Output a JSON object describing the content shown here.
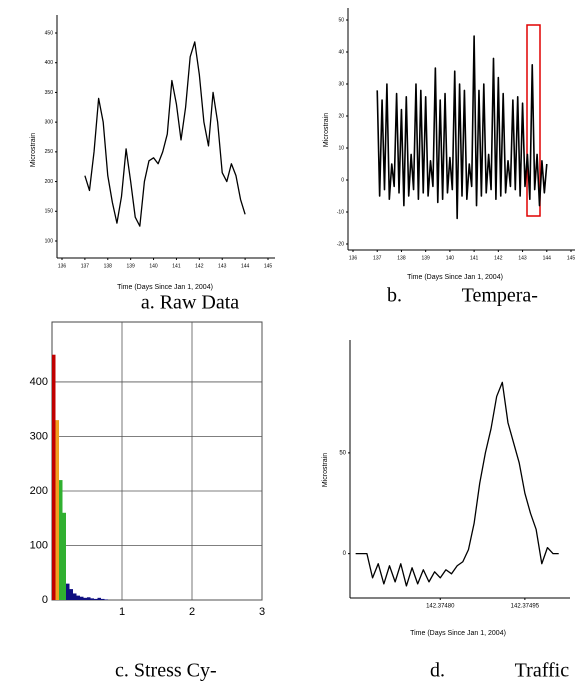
{
  "chart_data": [
    {
      "type": "line",
      "caption": "a. Raw Data",
      "x_label": "Time (Days Since Jan 1, 2004)",
      "y_label": "Microstrain",
      "color": "#000000",
      "grid": false,
      "x": [
        137.0,
        137.2,
        137.4,
        137.6,
        137.8,
        138.0,
        138.2,
        138.4,
        138.6,
        138.8,
        139.0,
        139.2,
        139.4,
        139.6,
        139.8,
        140.0,
        140.2,
        140.4,
        140.6,
        140.8,
        141.0,
        141.2,
        141.4,
        141.6,
        141.8,
        142.0,
        142.2,
        142.4,
        142.6,
        142.8,
        143.0,
        143.2,
        143.4,
        143.6,
        143.8,
        144.0
      ],
      "values": [
        210,
        185,
        250,
        340,
        300,
        210,
        165,
        130,
        175,
        255,
        200,
        140,
        125,
        200,
        235,
        240,
        230,
        250,
        280,
        370,
        330,
        270,
        325,
        410,
        435,
        380,
        300,
        260,
        350,
        300,
        215,
        200,
        230,
        210,
        170,
        145
      ],
      "xlim": [
        136,
        145
      ],
      "xticks": [
        136,
        137,
        138,
        139,
        140,
        141,
        142,
        143,
        144,
        145
      ],
      "ylim": [
        100,
        450
      ],
      "yticks": [
        100,
        150,
        200,
        250,
        300,
        350,
        400,
        450
      ]
    },
    {
      "type": "line",
      "caption": "b. Tempera-",
      "x_label": "Time (Days Since Jan 1, 2004)",
      "y_label": "Microstrain",
      "color": "#000000",
      "grid": false,
      "x": [
        137.0,
        137.1,
        137.2,
        137.3,
        137.4,
        137.5,
        137.6,
        137.7,
        137.8,
        137.9,
        138.0,
        138.1,
        138.2,
        138.3,
        138.4,
        138.5,
        138.6,
        138.7,
        138.8,
        138.9,
        139.0,
        139.1,
        139.2,
        139.3,
        139.4,
        139.5,
        139.6,
        139.7,
        139.8,
        139.9,
        140.0,
        140.1,
        140.2,
        140.3,
        140.4,
        140.5,
        140.6,
        140.7,
        140.8,
        140.9,
        141.0,
        141.1,
        141.2,
        141.3,
        141.4,
        141.5,
        141.6,
        141.7,
        141.8,
        141.9,
        142.0,
        142.1,
        142.2,
        142.3,
        142.4,
        142.5,
        142.6,
        142.7,
        142.8,
        142.9,
        143.0,
        143.1,
        143.2,
        143.3,
        143.4,
        143.5,
        143.6,
        143.7,
        143.8,
        143.9,
        144.0
      ],
      "values": [
        28,
        -5,
        25,
        -3,
        30,
        -6,
        5,
        -2,
        27,
        -4,
        22,
        -8,
        26,
        -5,
        8,
        -3,
        30,
        -6,
        28,
        -4,
        26,
        -5,
        6,
        -2,
        35,
        -7,
        25,
        -6,
        27,
        -4,
        7,
        -3,
        34,
        -12,
        30,
        -5,
        28,
        -6,
        5,
        -2,
        45,
        -8,
        28,
        -5,
        30,
        -4,
        8,
        -3,
        38,
        -6,
        32,
        -5,
        27,
        -4,
        6,
        -2,
        25,
        -3,
        26,
        -5,
        24,
        -2,
        8,
        -6,
        36,
        -3,
        8,
        -8,
        6,
        -4,
        5
      ],
      "xlim": [
        136,
        145
      ],
      "xticks": [
        136,
        137,
        138,
        139,
        140,
        141,
        142,
        143,
        144,
        145
      ],
      "ylim": [
        -20,
        50
      ],
      "yticks": [
        -20,
        -10,
        0,
        10,
        20,
        30,
        40,
        50
      ]
    },
    {
      "type": "histogram",
      "caption": "c. Stress Cy-",
      "grid": true,
      "bins": [
        0,
        0.05,
        0.1,
        0.15,
        0.2,
        0.25,
        0.3,
        0.35,
        0.4,
        0.45,
        0.5,
        0.55,
        0.6,
        0.65,
        0.7,
        0.75,
        0.8
      ],
      "values": [
        450,
        330,
        220,
        160,
        30,
        20,
        12,
        8,
        6,
        4,
        5,
        3,
        2,
        4,
        2,
        1
      ],
      "colors": [
        "#c00000",
        "#f0a020",
        "#30b030",
        "#30b030",
        "#101080",
        "#101080",
        "#101080",
        "#101080",
        "#101080",
        "#101080",
        "#101080",
        "#101080",
        "#101080",
        "#101080",
        "#101080",
        "#101080"
      ],
      "xlim": [
        0,
        3
      ],
      "xticks": [
        1,
        2,
        3
      ],
      "ylim": [
        0,
        510
      ],
      "yticks": [
        0,
        100,
        200,
        300,
        400
      ]
    },
    {
      "type": "line",
      "caption": "d. Traffic",
      "x_label": "Time (Days Since Jan 1, 2004)",
      "y_label": "Microstrain",
      "color": "#000000",
      "grid": false,
      "x": [
        142.37465,
        142.37466,
        142.37467,
        142.37468,
        142.37469,
        142.3747,
        142.37471,
        142.37472,
        142.37473,
        142.37474,
        142.37475,
        142.37476,
        142.37477,
        142.37478,
        142.37479,
        142.3748,
        142.37481,
        142.37482,
        142.37483,
        142.37484,
        142.37485,
        142.37486,
        142.37487,
        142.37488,
        142.37489,
        142.3749,
        142.37491,
        142.37492,
        142.37493,
        142.37494,
        142.37495,
        142.37496,
        142.37497,
        142.37498,
        142.37499,
        142.375,
        142.37501
      ],
      "values": [
        0,
        0,
        0,
        -12,
        -5,
        -15,
        -6,
        -14,
        -5,
        -16,
        -7,
        -15,
        -8,
        -14,
        -9,
        -12,
        -8,
        -10,
        -6,
        -4,
        2,
        15,
        35,
        50,
        62,
        78,
        85,
        65,
        55,
        45,
        30,
        20,
        12,
        -5,
        3,
        0,
        0
      ],
      "xlim": [
        142.37464,
        142.37503
      ],
      "xticks": [
        {
          "value": 142.3748,
          "label": "142.37480"
        },
        142.37495
      ],
      "ylim": [
        -22,
        106
      ],
      "yticks": [
        0,
        50
      ]
    }
  ]
}
